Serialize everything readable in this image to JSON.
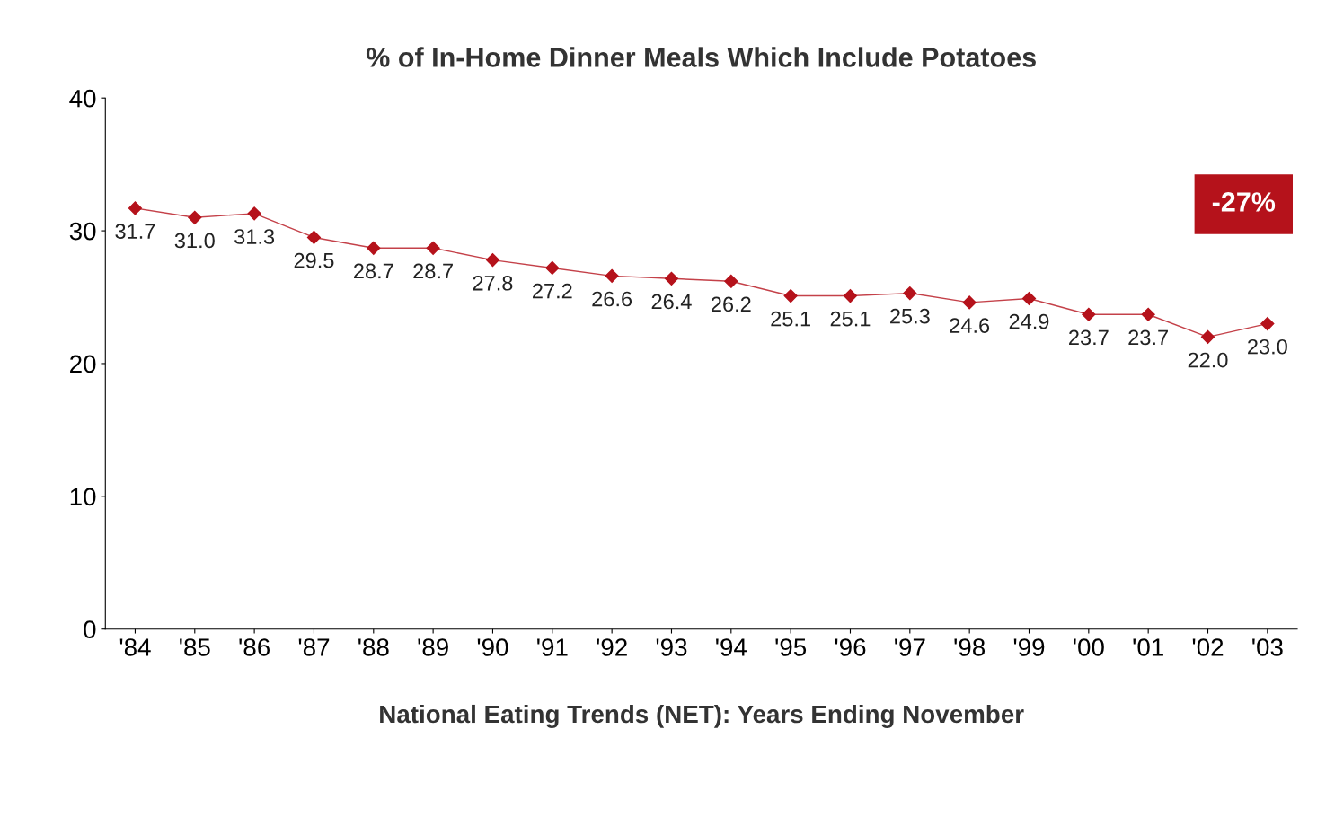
{
  "chart_data": {
    "type": "line",
    "title": "% of In-Home Dinner Meals Which Include Potatoes",
    "xlabel": "National Eating Trends (NET): Years Ending November",
    "categories": [
      "'84",
      "'85",
      "'86",
      "'87",
      "'88",
      "'89",
      "'90",
      "'91",
      "'92",
      "'93",
      "'94",
      "'95",
      "'96",
      "'97",
      "'98",
      "'99",
      "'00",
      "'01",
      "'02",
      "'03"
    ],
    "series": [
      {
        "color": "#b5121b",
        "values": [
          31.7,
          31.0,
          31.3,
          29.5,
          28.7,
          28.7,
          27.8,
          27.2,
          26.6,
          26.4,
          26.2,
          25.1,
          25.1,
          25.3,
          24.6,
          24.9,
          23.7,
          23.7,
          22.0,
          23.0
        ],
        "value_labels": [
          "31.7",
          "31.0",
          "31.3",
          "29.5",
          "28.7",
          "28.7",
          "27.8",
          "27.2",
          "26.6",
          "26.4",
          "26.2",
          "25.1",
          "25.1",
          "25.3",
          "24.6",
          "24.9",
          "23.7",
          "23.7",
          "22.0",
          "23.0"
        ]
      }
    ],
    "ylim": [
      0,
      40
    ],
    "yticks": [
      0,
      10,
      20,
      30,
      40
    ],
    "grid": false,
    "legend": false,
    "marker": "diamond",
    "line_style": "solid",
    "annotations": [
      "-27%"
    ]
  }
}
